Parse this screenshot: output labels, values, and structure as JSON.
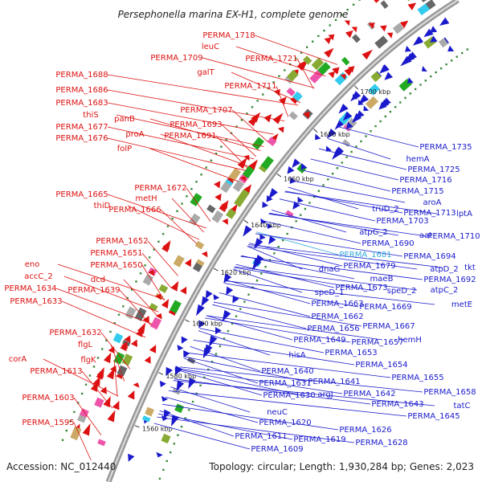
{
  "title": "Persephonella marina EX-H1, complete genome",
  "accession": "Accession: NC_012440",
  "summary": "Topology: circular; Length: 1,930,284 bp; Genes: 2,023",
  "colors": {
    "left_label": "#dd1111",
    "right_label": "#1a1acc",
    "highlight_label": "#33aadd",
    "backbone": "#999999",
    "tick_dot": "#3a8a3a"
  },
  "scale_ticks": [
    "1560 kbp",
    "1580 kbp",
    "1600 kbp",
    "1620 kbp",
    "1640 kbp",
    "1660 kbp",
    "1680 kbp",
    "1700 kbp"
  ],
  "left_genes": [
    "PERMA_1718",
    "leuC",
    "PERMA_1709",
    "PERMA_1721",
    "galT",
    "PERMA_1711",
    "PERMA_1688",
    "PERMA_1686",
    "PERMA_1683",
    "panB",
    "PERMA_1707",
    "thiS",
    "PERMA_1693",
    "PERMA_1677",
    "proA",
    "PERMA_1676",
    "PERMA_1691",
    "folP",
    "PERMA_1672",
    "PERMA_1665",
    "metH",
    "thiD",
    "PERMA_1666",
    "PERMA_1652",
    "PERMA_1651",
    "PERMA_1650",
    "eno",
    "accC_2",
    "dcd",
    "PERMA_1634",
    "PERMA_1639",
    "PERMA_1633",
    "PERMA_1632",
    "flgL",
    "corA",
    "flgK",
    "PERMA_1613",
    "PERMA_1603",
    "PERMA_1595"
  ],
  "right_genes": [
    "PERMA_1735",
    "hemA",
    "PERMA_1725",
    "PERMA_1716",
    "PERMA_1715",
    "aroA",
    "PERMA_1713",
    "lptA",
    "truD_2",
    "PERMA_1703",
    "atpG_2",
    "aat",
    "PERMA_1710",
    "PERMA_1690",
    "PERMA_1681",
    "PERMA_1694",
    "PERMA_1679",
    "atpD_2",
    "tkt",
    "dnaG",
    "maeB",
    "PERMA_1692",
    "speD_2",
    "atpC_2",
    "PERMA_1673",
    "speD_1",
    "metE",
    "PERMA_1663",
    "PERMA_1669",
    "PERMA_1662",
    "PERMA_1667",
    "PERMA_1656",
    "PERMA_1649",
    "PERMA_1657",
    "PERMA_1653",
    "hemH",
    "hisA",
    "PERMA_1654",
    "PERMA_1640",
    "PERMA_1655",
    "PERMA_1631",
    "PERMA_1641",
    "PERMA_1642",
    "PERMA_1658",
    "PERMA_1630",
    "argJ",
    "PERMA_1643",
    "tatC",
    "PERMA_1645",
    "neuC",
    "PERMA_1620",
    "PERMA_1626",
    "PERMA_1611",
    "PERMA_1619",
    "PERMA_1628",
    "PERMA_1609"
  ]
}
